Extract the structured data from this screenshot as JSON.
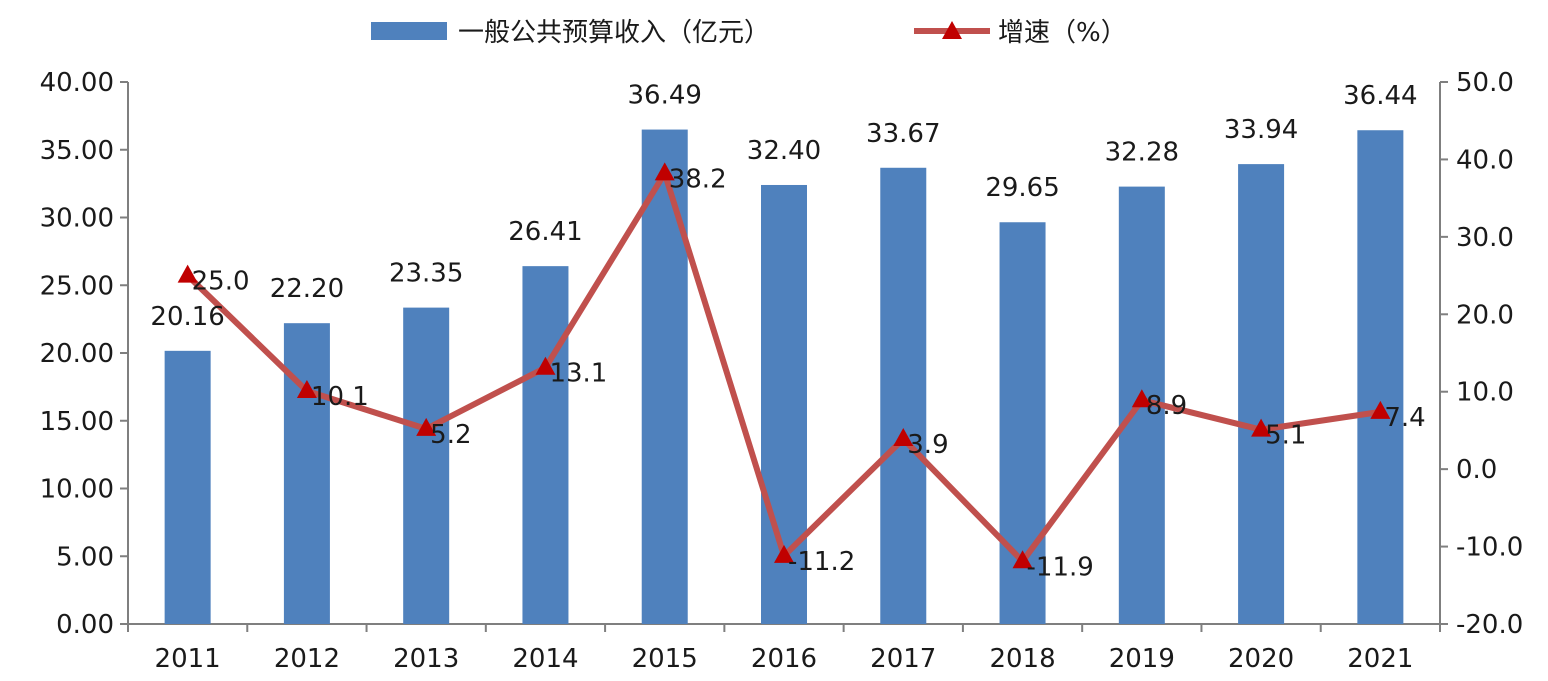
{
  "chart_data": {
    "type": "bar",
    "categories": [
      "2011",
      "2012",
      "2013",
      "2014",
      "2015",
      "2016",
      "2017",
      "2018",
      "2019",
      "2020",
      "2021"
    ],
    "series": [
      {
        "name": "一般公共预算收入（亿元）",
        "type": "bar",
        "axis": "left",
        "color": "#4f81bd",
        "values": [
          20.16,
          22.2,
          23.35,
          26.41,
          36.49,
          32.4,
          33.67,
          29.65,
          32.28,
          33.94,
          36.44
        ],
        "labels": [
          "20.16",
          "22.20",
          "23.35",
          "26.41",
          "36.49",
          "32.40",
          "33.67",
          "29.65",
          "32.28",
          "33.94",
          "36.44"
        ]
      },
      {
        "name": "增速（%）",
        "type": "line",
        "axis": "right",
        "color": "#c0504d",
        "marker_color": "#c00000",
        "marker": "triangle",
        "values": [
          25.0,
          10.1,
          5.2,
          13.1,
          38.2,
          -11.2,
          3.9,
          -11.9,
          8.9,
          5.1,
          7.4
        ],
        "labels": [
          "25.0",
          "10.1",
          "5.2",
          "13.1",
          "38.2",
          "-11.2",
          "3.9",
          "-11.9",
          "8.9",
          "5.1",
          "7.4"
        ]
      }
    ],
    "y_left": {
      "min": 0,
      "max": 40,
      "step": 5,
      "ticks": [
        "0.00",
        "5.00",
        "10.00",
        "15.00",
        "20.00",
        "25.00",
        "30.00",
        "35.00",
        "40.00"
      ]
    },
    "y_right": {
      "min": -20,
      "max": 50,
      "step": 10,
      "ticks": [
        "-20.0",
        "-10.0",
        "0.0",
        "10.0",
        "20.0",
        "30.0",
        "40.0",
        "50.0"
      ]
    },
    "grid": false,
    "legend": "top-center"
  }
}
